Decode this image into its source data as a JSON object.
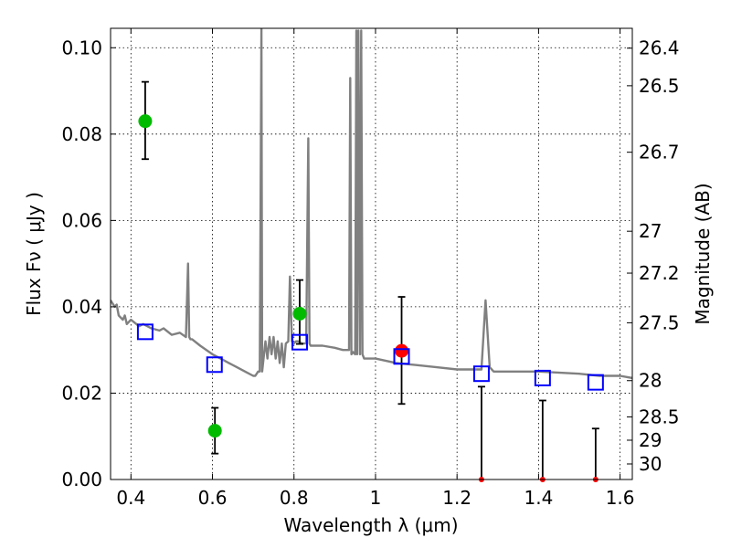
{
  "chart_data": {
    "type": "scatter",
    "xlabel": "Wavelength  λ (μm)",
    "ylabel": "Flux  Fν  ( μJy )",
    "y2label": "Magnitude (AB)",
    "xlim": [
      0.35,
      1.63
    ],
    "ylim": [
      0.0,
      0.1045
    ],
    "grid": true,
    "x_ticks": [
      0.4,
      0.6,
      0.8,
      1.0,
      1.2,
      1.4,
      1.6
    ],
    "x_tick_labels": [
      "0.4",
      "0.6",
      "0.8",
      "1",
      "1.2",
      "1.4",
      "1.6"
    ],
    "y_ticks": [
      0.0,
      0.02,
      0.04,
      0.06,
      0.08,
      0.1
    ],
    "y_tick_labels": [
      "0.00",
      "0.02",
      "0.04",
      "0.06",
      "0.08",
      "0.10"
    ],
    "y2_ticks": [
      {
        "label": "26.4",
        "flux": 0.0999
      },
      {
        "label": "26.5",
        "flux": 0.0912
      },
      {
        "label": "26.7",
        "flux": 0.0758
      },
      {
        "label": "27",
        "flux": 0.0575
      },
      {
        "label": "27.2",
        "flux": 0.0478
      },
      {
        "label": "27.5",
        "flux": 0.0363
      },
      {
        "label": "28",
        "flux": 0.0229
      },
      {
        "label": "28.5",
        "flux": 0.0145
      },
      {
        "label": "29",
        "flux": 0.0091
      },
      {
        "label": "30",
        "flux": 0.0036
      }
    ],
    "series": [
      {
        "kind": "line",
        "color": "#808080",
        "x": [
          0.35,
          0.36,
          0.365,
          0.37,
          0.38,
          0.385,
          0.39,
          0.4,
          0.42,
          0.43,
          0.45,
          0.47,
          0.48,
          0.5,
          0.52,
          0.535,
          0.54,
          0.543,
          0.546,
          0.55,
          0.57,
          0.6,
          0.62,
          0.64,
          0.66,
          0.68,
          0.7,
          0.705,
          0.712,
          0.716,
          0.72,
          0.722,
          0.73,
          0.735,
          0.74,
          0.745,
          0.75,
          0.755,
          0.76,
          0.765,
          0.77,
          0.775,
          0.78,
          0.786,
          0.79,
          0.795,
          0.8,
          0.805,
          0.81,
          0.82,
          0.83,
          0.835,
          0.838,
          0.841,
          0.85,
          0.87,
          0.9,
          0.92,
          0.935,
          0.938,
          0.941,
          0.945,
          0.95,
          0.953,
          0.955,
          0.958,
          0.962,
          0.965,
          0.968,
          0.972,
          0.975,
          0.98,
          1.0,
          1.05,
          1.1,
          1.15,
          1.2,
          1.25,
          1.26,
          1.27,
          1.28,
          1.29,
          1.3,
          1.35,
          1.4,
          1.5,
          1.55,
          1.6,
          1.63
        ],
        "y": [
          0.0415,
          0.04,
          0.0405,
          0.038,
          0.037,
          0.038,
          0.036,
          0.037,
          0.0355,
          0.036,
          0.035,
          0.0345,
          0.035,
          0.0335,
          0.034,
          0.033,
          0.05,
          0.033,
          0.0325,
          0.0325,
          0.031,
          0.029,
          0.028,
          0.027,
          0.026,
          0.025,
          0.024,
          0.024,
          0.025,
          0.025,
          0.1045,
          0.025,
          0.032,
          0.028,
          0.033,
          0.029,
          0.033,
          0.028,
          0.032,
          0.027,
          0.0315,
          0.026,
          0.0315,
          0.032,
          0.047,
          0.032,
          0.0315,
          0.032,
          0.032,
          0.0315,
          0.0315,
          0.079,
          0.0315,
          0.031,
          0.031,
          0.031,
          0.0305,
          0.03,
          0.03,
          0.093,
          0.029,
          0.0295,
          0.029,
          0.104,
          0.029,
          0.104,
          0.029,
          0.104,
          0.029,
          0.028,
          0.028,
          0.028,
          0.028,
          0.027,
          0.0265,
          0.026,
          0.0255,
          0.0255,
          0.0255,
          0.0415,
          0.026,
          0.025,
          0.025,
          0.025,
          0.025,
          0.0245,
          0.024,
          0.024,
          0.0235
        ]
      },
      {
        "kind": "scatter",
        "marker": "circle",
        "color": "#00bb00",
        "x": [
          0.435,
          0.606,
          0.814
        ],
        "y": [
          0.083,
          0.0113,
          0.0384
        ],
        "yerr_low": [
          0.0742,
          0.006,
          0.0314
        ],
        "yerr_high": [
          0.0921,
          0.0166,
          0.0462
        ]
      },
      {
        "kind": "scatter",
        "marker": "circle",
        "color": "#ff0000",
        "x": [
          1.064,
          1.26,
          1.41,
          1.54
        ],
        "y": [
          0.0298,
          0.0,
          0.0,
          0.0
        ],
        "yerr_low": [
          0.0175,
          0.0,
          0.0,
          0.0
        ],
        "yerr_high": [
          0.0423,
          0.0215,
          0.0183,
          0.0118
        ]
      },
      {
        "kind": "scatter",
        "marker": "open-square",
        "color": "#0000ff",
        "x": [
          0.435,
          0.605,
          0.814,
          1.064,
          1.26,
          1.41,
          1.54
        ],
        "y": [
          0.0342,
          0.0266,
          0.0318,
          0.0285,
          0.0245,
          0.0235,
          0.0225
        ]
      }
    ]
  }
}
